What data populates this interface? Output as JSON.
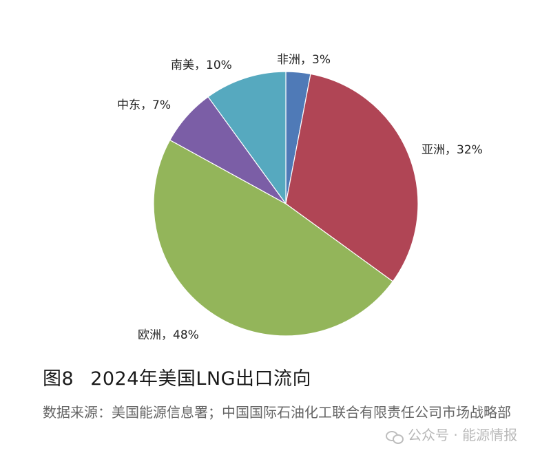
{
  "chart_data": {
    "type": "pie",
    "slices": [
      {
        "label": "非洲，3%",
        "value": 3,
        "color": "#4f7ab7"
      },
      {
        "label": "亚洲，32%",
        "value": 32,
        "color": "#b04555"
      },
      {
        "label": "欧洲，48%",
        "value": 48,
        "color": "#93b55a"
      },
      {
        "label": "中东，7%",
        "value": 7,
        "color": "#7b5ea6"
      },
      {
        "label": "南美，10%",
        "value": 10,
        "color": "#56a9bf"
      }
    ],
    "start": "12 o'clock",
    "direction": "clockwise"
  },
  "caption": {
    "number": "图8",
    "title": "2024年美国LNG出口流向"
  },
  "source": "数据来源：美国能源信息署；中国国际石油化工联合有限责任公司市场战略部",
  "watermark": "公众号 · 能源情报"
}
